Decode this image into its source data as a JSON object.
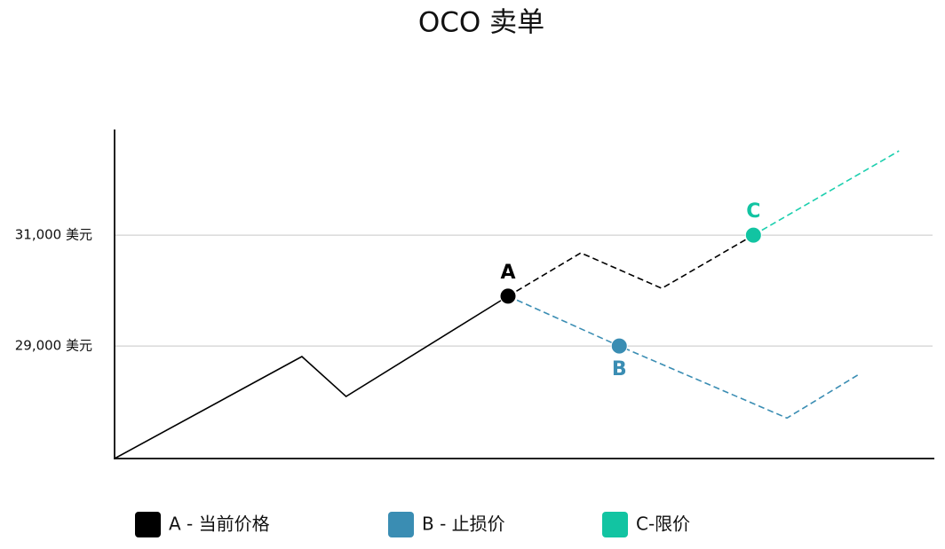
{
  "chart_data": {
    "type": "line",
    "title": "OCO 卖单",
    "xlim": [
      0,
      100
    ],
    "ylim": [
      26970,
      32890
    ],
    "yticks": [
      {
        "value": 29000,
        "label": "29,000 美元"
      },
      {
        "value": 31000,
        "label": "31,000 美元"
      }
    ],
    "grid": true,
    "series": [
      {
        "color": "#000000",
        "line_style": "solid",
        "x": [
          0,
          22.9,
          28.3,
          48.1
        ],
        "values": [
          26970,
          28810,
          28090,
          29900
        ]
      },
      {
        "color": "#000000",
        "line_style": "dashed",
        "x": [
          48.1,
          57,
          66.9,
          78.1
        ],
        "values": [
          29900,
          30680,
          30040,
          31000
        ]
      },
      {
        "color": "#1ccfae",
        "line_style": "dashed",
        "x": [
          78.1,
          95.9
        ],
        "values": [
          31000,
          32520
        ]
      },
      {
        "color": "#3a8db3",
        "line_style": "dashed",
        "x": [
          48.1,
          61.7,
          82.2,
          90.9
        ],
        "values": [
          29900,
          29000,
          27700,
          28480
        ]
      }
    ],
    "points": [
      {
        "label": "A",
        "x": 48.1,
        "y": 29900,
        "color": "#000000",
        "label_position": "above"
      },
      {
        "label": "B",
        "x": 61.7,
        "y": 29000,
        "color": "#3a8db3",
        "label_position": "below"
      },
      {
        "label": "C",
        "x": 78.1,
        "y": 31000,
        "color": "#12c4a2",
        "label_position": "above"
      }
    ],
    "legend": [
      {
        "label": "A - 当前价格",
        "color": "#000000"
      },
      {
        "label": "B - 止损价",
        "color": "#3a8db3"
      },
      {
        "label": "C-限价",
        "color": "#12c4a2"
      }
    ]
  }
}
